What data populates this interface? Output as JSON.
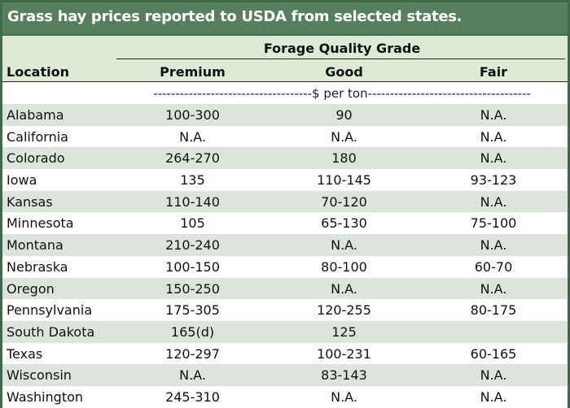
{
  "title": "Grass hay prices reported to USDA from selected states.",
  "header": {
    "group_label": "Forage Quality Grade",
    "location": "Location",
    "premium": "Premium",
    "good": "Good",
    "fair": "Fair"
  },
  "units": "------------------------------------$ per ton-------------------------------------",
  "rows": [
    {
      "location": "Alabama",
      "premium": "100-300",
      "good": "90",
      "fair": "N.A."
    },
    {
      "location": "California",
      "premium": "N.A.",
      "good": "N.A.",
      "fair": "N.A."
    },
    {
      "location": "Colorado",
      "premium": "264-270",
      "good": "180",
      "fair": "N.A."
    },
    {
      "location": "Iowa",
      "premium": "135",
      "good": "110-145",
      "fair": "93-123"
    },
    {
      "location": "Kansas",
      "premium": "110-140",
      "good": "70-120",
      "fair": "N.A."
    },
    {
      "location": "Minnesota",
      "premium": "105",
      "good": "65-130",
      "fair": "75-100"
    },
    {
      "location": "Montana",
      "premium": "210-240",
      "good": "N.A.",
      "fair": "N.A."
    },
    {
      "location": "Nebraska",
      "premium": "100-150",
      "good": "80-100",
      "fair": "60-70"
    },
    {
      "location": "Oregon",
      "premium": "150-250",
      "good": "N.A.",
      "fair": "N.A."
    },
    {
      "location": "Pennsylvania",
      "premium": "175-305",
      "good": "120-255",
      "fair": "80-175"
    },
    {
      "location": "South Dakota",
      "premium": "165(d)",
      "good": "125",
      "fair": ""
    },
    {
      "location": "Texas",
      "premium": "120-297",
      "good": "100-231",
      "fair": "60-165"
    },
    {
      "location": "Wisconsin",
      "premium": "N.A.",
      "good": "83-143",
      "fair": "N.A."
    },
    {
      "location": "Washington",
      "premium": "245-310",
      "good": "N.A.",
      "fair": "N.A."
    }
  ],
  "colors": {
    "title_bg": "#557f5d",
    "border": "#3f6a4c",
    "header_bg": "#dcead6",
    "stripe": "#dde4dc"
  }
}
